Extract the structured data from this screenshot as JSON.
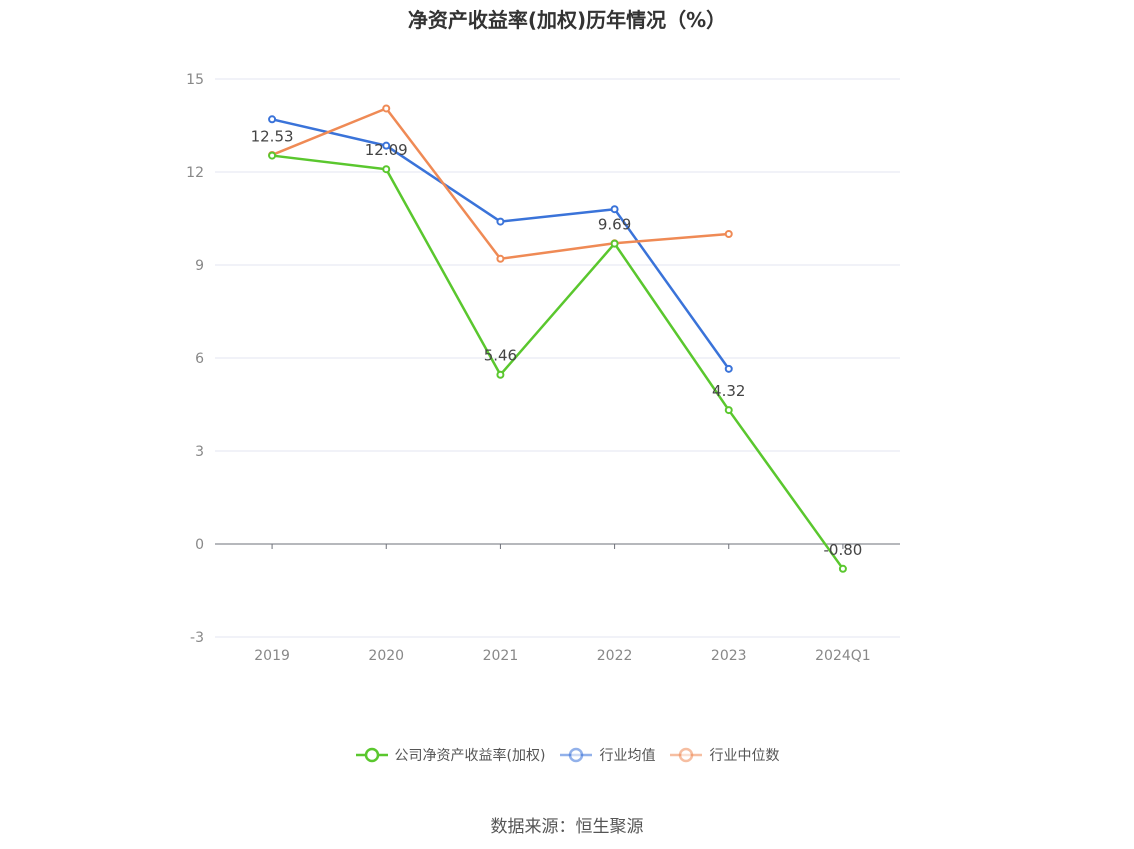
{
  "chart_data": {
    "type": "line",
    "title": "净资产收益率(加权)历年情况（%）",
    "categories": [
      "2019",
      "2020",
      "2021",
      "2022",
      "2023",
      "2024Q1"
    ],
    "ylim": [
      -3,
      15
    ],
    "yticks": [
      -3,
      0,
      3,
      6,
      9,
      12,
      15
    ],
    "grid": true,
    "legend_position": "bottom",
    "series": [
      {
        "name": "公司净资产收益率(加权)",
        "color": "#5ac72e",
        "values": [
          12.53,
          12.09,
          5.46,
          9.69,
          4.32,
          -0.8
        ],
        "labels": [
          "12.53",
          "12.09",
          "5.46",
          "9.69",
          "4.32",
          "-0.80"
        ]
      },
      {
        "name": "行业均值",
        "color": "#3a73d9",
        "values": [
          13.7,
          12.85,
          10.4,
          10.8,
          5.65,
          null
        ]
      },
      {
        "name": "行业中位数",
        "color": "#ef8a55",
        "values": [
          12.55,
          14.05,
          9.2,
          9.7,
          10.0,
          null
        ]
      }
    ]
  },
  "source_text": "数据来源：恒生聚源"
}
